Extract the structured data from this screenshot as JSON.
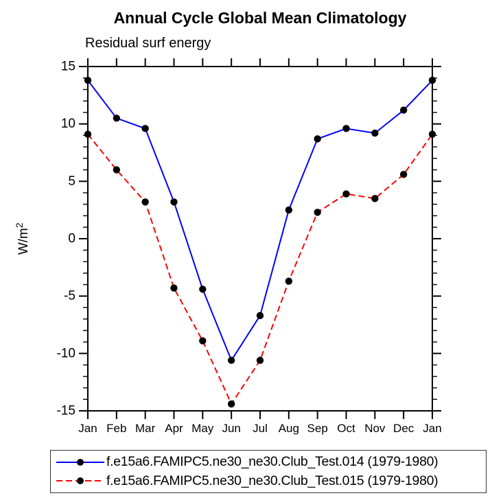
{
  "chart": {
    "title": "Annual Cycle Global Mean Climatology",
    "subtitle": "Residual surf energy",
    "ylabel_base": "W/m",
    "ylabel_exp": "2"
  },
  "legend": {
    "items": [
      {
        "label": "f.e15a6.FAMIPC5.ne30_ne30.Club_Test.014 (1979-1980)",
        "color": "#0000ff",
        "style": "solid"
      },
      {
        "label": "f.e15a6.FAMIPC5.ne30_ne30.Club_Test.015 (1979-1980)",
        "color": "#ff0000",
        "style": "dashed"
      }
    ]
  },
  "chart_data": {
    "type": "line",
    "title": "Annual Cycle Global Mean Climatology",
    "subtitle": "Residual surf energy",
    "xlabel": "",
    "ylabel": "W/m2",
    "categories": [
      "Jan",
      "Feb",
      "Mar",
      "Apr",
      "May",
      "Jun",
      "Jul",
      "Aug",
      "Sep",
      "Oct",
      "Nov",
      "Dec",
      "Jan"
    ],
    "ylim": [
      -15,
      15
    ],
    "ytick_major": 5,
    "ytick_minor": 1,
    "ytick_labels": [
      "15",
      "10",
      "5",
      "0",
      "-5",
      "-10",
      "-15"
    ],
    "grid": false,
    "legend_position": "bottom",
    "marker": "filled-circle",
    "marker_color": "#000000",
    "axis_color": "#000000",
    "series": [
      {
        "name": "f.e15a6.FAMIPC5.ne30_ne30.Club_Test.014 (1979-1980)",
        "color": "#0000ff",
        "line_style": "solid",
        "values": [
          13.8,
          10.5,
          9.6,
          3.2,
          -4.4,
          -10.6,
          -6.7,
          2.5,
          8.7,
          9.6,
          9.2,
          11.2,
          13.8
        ]
      },
      {
        "name": "f.e15a6.FAMIPC5.ne30_ne30.Club_Test.015 (1979-1980)",
        "color": "#ff0000",
        "line_style": "dashed",
        "values": [
          9.1,
          6.0,
          3.2,
          -4.3,
          -8.9,
          -14.4,
          -10.6,
          -3.7,
          2.3,
          3.9,
          3.5,
          5.6,
          9.1
        ]
      }
    ]
  }
}
